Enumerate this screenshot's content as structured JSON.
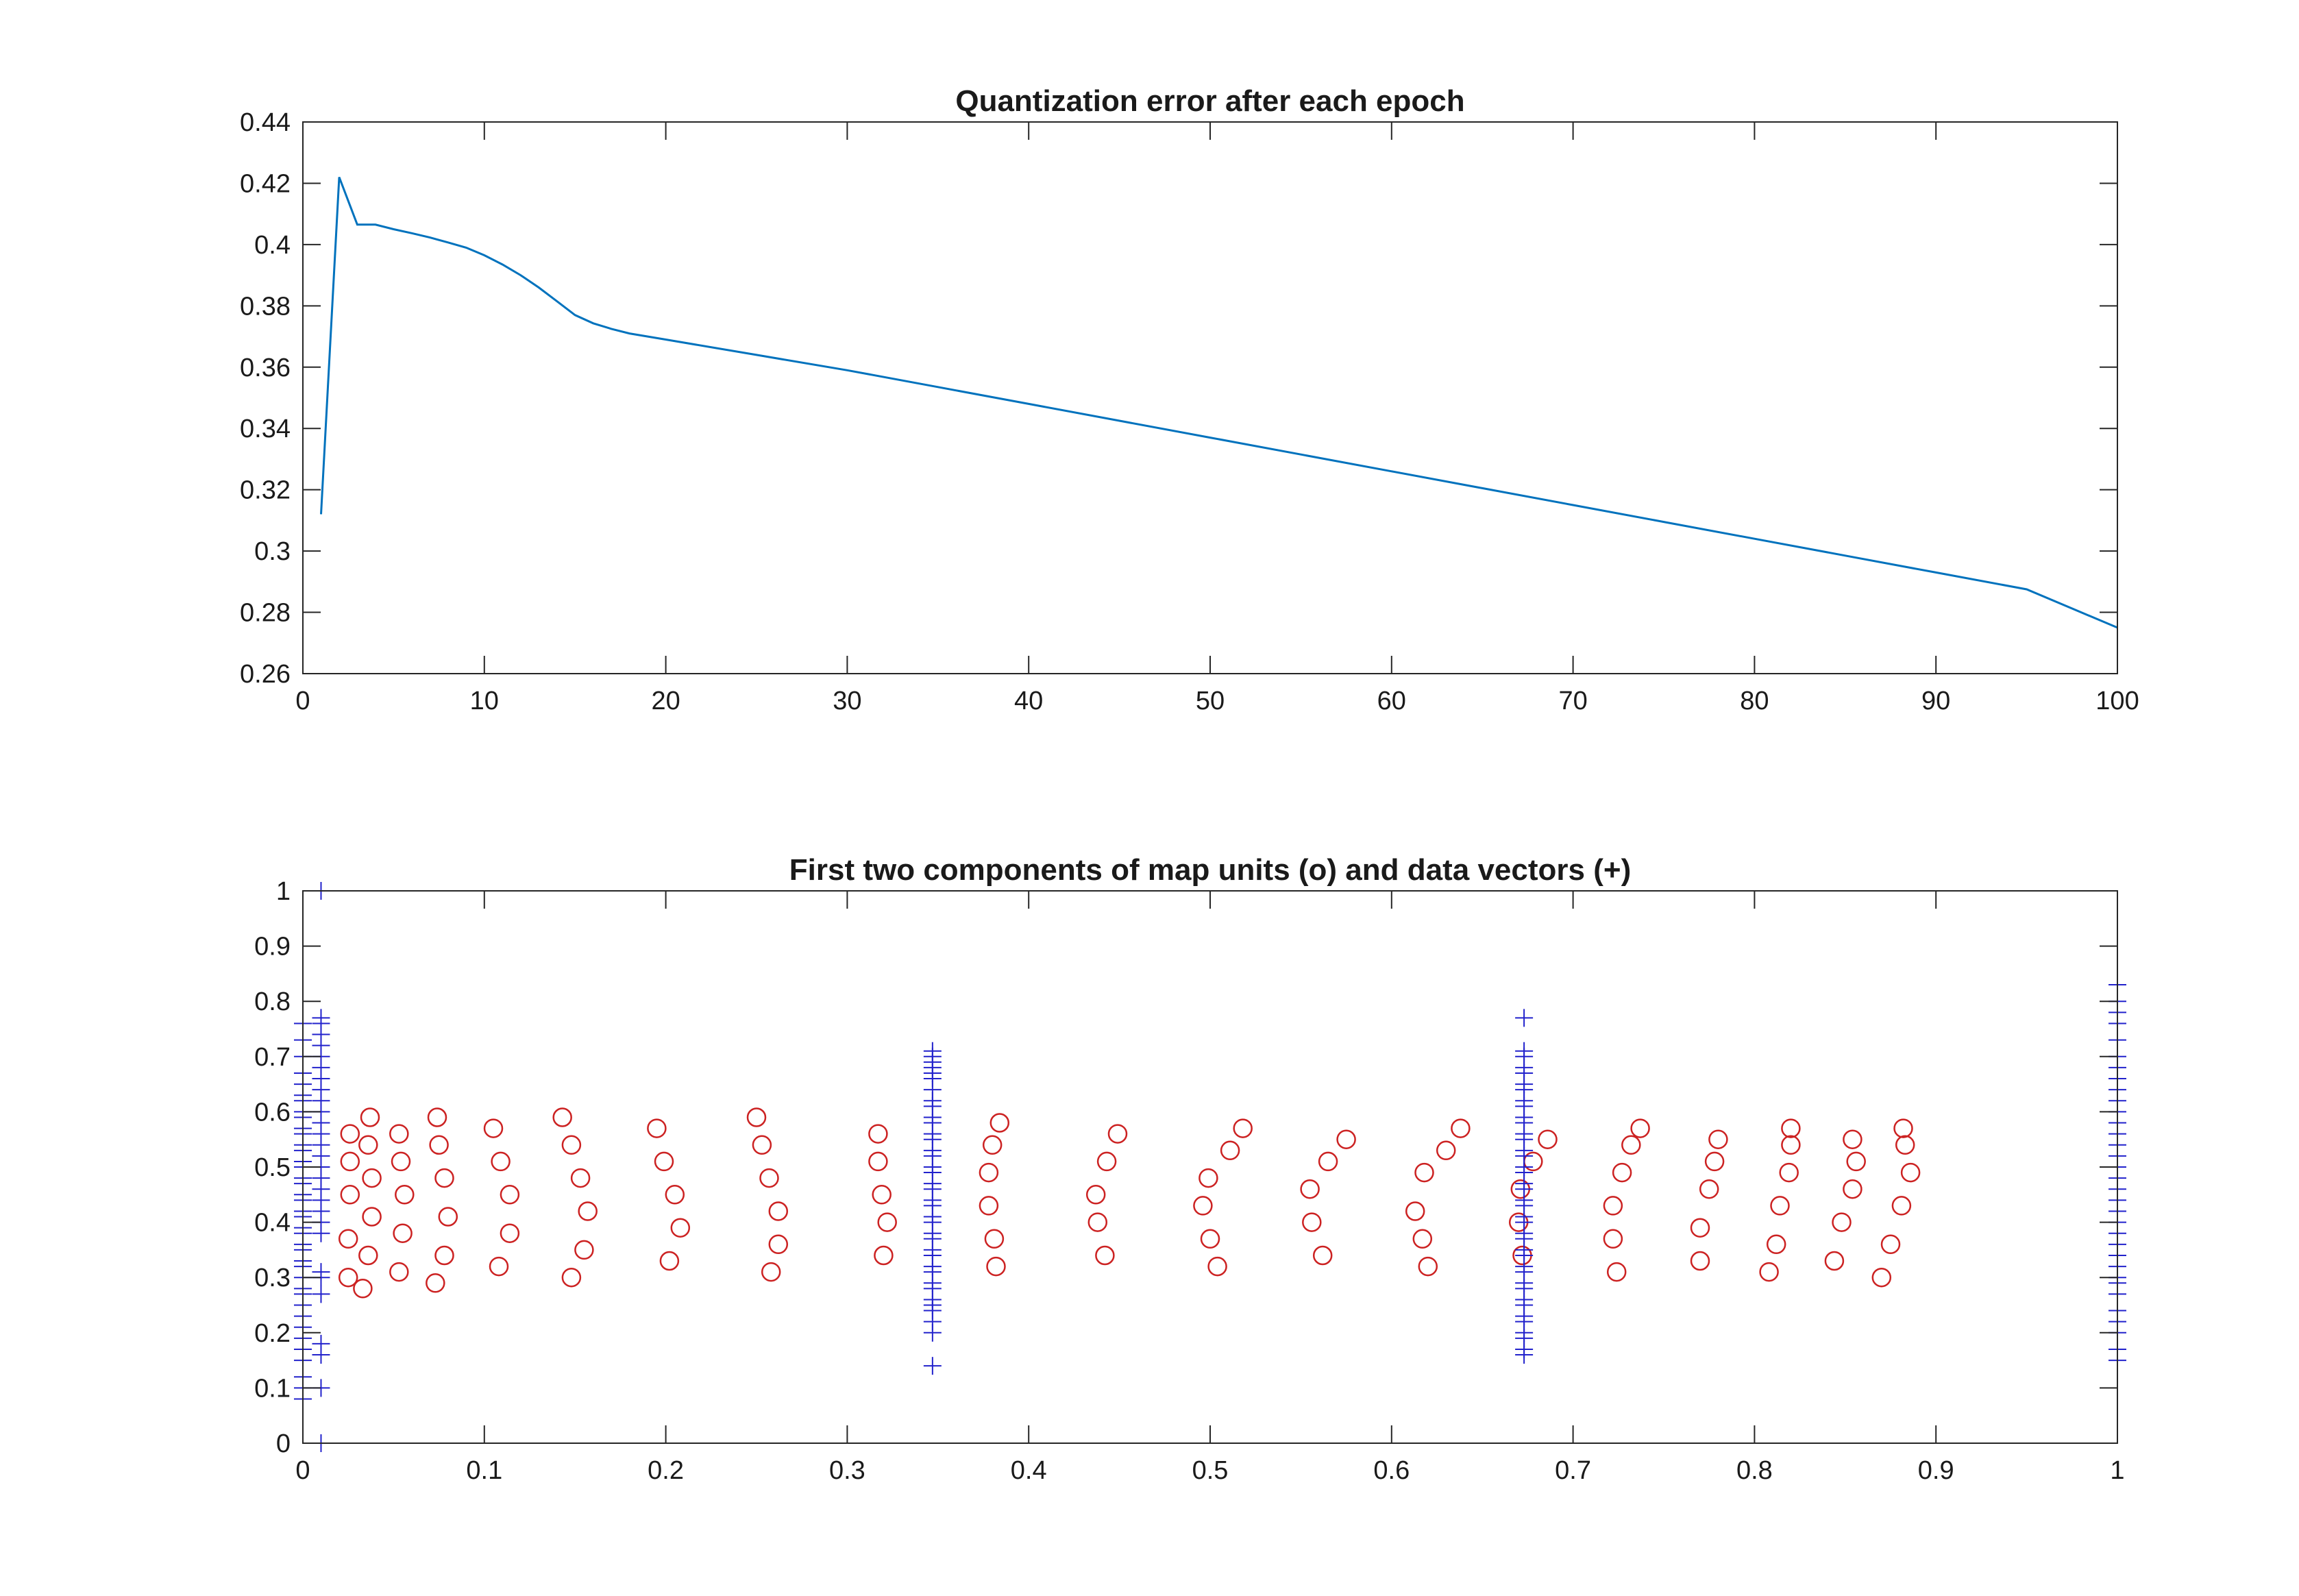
{
  "chart_data": [
    {
      "type": "line",
      "title": "Quantization error after each epoch",
      "xlabel": "",
      "ylabel": "",
      "xlim": [
        0,
        100
      ],
      "ylim": [
        0.26,
        0.44
      ],
      "xticks": [
        0,
        10,
        20,
        30,
        40,
        50,
        60,
        70,
        80,
        90,
        100
      ],
      "xtick_labels": [
        "0",
        "10",
        "20",
        "30",
        "40",
        "50",
        "60",
        "70",
        "80",
        "90",
        "100"
      ],
      "yticks": [
        0.26,
        0.28,
        0.3,
        0.32,
        0.34,
        0.36,
        0.38,
        0.4,
        0.42,
        0.44
      ],
      "ytick_labels": [
        "0.26",
        "0.28",
        "0.3",
        "0.32",
        "0.34",
        "0.36",
        "0.38",
        "0.4",
        "0.42",
        "0.44"
      ],
      "grid": false,
      "line_color": "#0072BD",
      "series": [
        {
          "x": [
            1,
            2,
            3,
            4,
            5,
            6,
            7,
            8,
            9,
            10,
            11,
            12,
            13,
            14,
            15,
            16,
            17,
            18,
            20,
            25,
            30,
            35,
            40,
            45,
            50,
            55,
            60,
            65,
            70,
            75,
            80,
            85,
            90,
            95,
            100
          ],
          "y": [
            0.312,
            0.422,
            0.4065,
            0.4065,
            0.405,
            0.4037,
            0.4023,
            0.4007,
            0.399,
            0.3965,
            0.3935,
            0.39,
            0.386,
            0.3815,
            0.377,
            0.3743,
            0.3725,
            0.371,
            0.369,
            0.364,
            0.359,
            0.3535,
            0.348,
            0.3425,
            0.337,
            0.3315,
            0.326,
            0.3205,
            0.315,
            0.3095,
            0.304,
            0.2985,
            0.293,
            0.2875,
            0.275
          ]
        }
      ]
    },
    {
      "type": "scatter",
      "title": "First two components of map units (o) and data vectors (+)",
      "xlabel": "",
      "ylabel": "",
      "xlim": [
        0,
        1
      ],
      "ylim": [
        0,
        1
      ],
      "xticks": [
        0,
        0.1,
        0.2,
        0.3,
        0.4,
        0.5,
        0.6,
        0.7,
        0.8,
        0.9,
        1
      ],
      "xtick_labels": [
        "0",
        "0.1",
        "0.2",
        "0.3",
        "0.4",
        "0.5",
        "0.6",
        "0.7",
        "0.8",
        "0.9",
        "1"
      ],
      "yticks": [
        0,
        0.1,
        0.2,
        0.3,
        0.4,
        0.5,
        0.6,
        0.7,
        0.8,
        0.9,
        1
      ],
      "ytick_labels": [
        "0",
        "0.1",
        "0.2",
        "0.3",
        "0.4",
        "0.5",
        "0.6",
        "0.7",
        "0.8",
        "0.9",
        "1"
      ],
      "grid": false,
      "series": [
        {
          "marker": "o",
          "color": "#CC2222",
          "points": [
            [
              0.025,
              0.3
            ],
            [
              0.033,
              0.28
            ],
            [
              0.053,
              0.31
            ],
            [
              0.073,
              0.29
            ],
            [
              0.108,
              0.32
            ],
            [
              0.148,
              0.3
            ],
            [
              0.202,
              0.33
            ],
            [
              0.258,
              0.31
            ],
            [
              0.32,
              0.34
            ],
            [
              0.382,
              0.32
            ],
            [
              0.442,
              0.34
            ],
            [
              0.504,
              0.32
            ],
            [
              0.562,
              0.34
            ],
            [
              0.62,
              0.32
            ],
            [
              0.672,
              0.34
            ],
            [
              0.724,
              0.31
            ],
            [
              0.77,
              0.33
            ],
            [
              0.808,
              0.31
            ],
            [
              0.844,
              0.33
            ],
            [
              0.87,
              0.3
            ],
            [
              0.025,
              0.37
            ],
            [
              0.036,
              0.34
            ],
            [
              0.055,
              0.38
            ],
            [
              0.078,
              0.34
            ],
            [
              0.114,
              0.38
            ],
            [
              0.155,
              0.35
            ],
            [
              0.208,
              0.39
            ],
            [
              0.262,
              0.36
            ],
            [
              0.322,
              0.4
            ],
            [
              0.381,
              0.37
            ],
            [
              0.438,
              0.4
            ],
            [
              0.5,
              0.37
            ],
            [
              0.556,
              0.4
            ],
            [
              0.617,
              0.37
            ],
            [
              0.67,
              0.4
            ],
            [
              0.722,
              0.37
            ],
            [
              0.77,
              0.39
            ],
            [
              0.812,
              0.36
            ],
            [
              0.848,
              0.4
            ],
            [
              0.875,
              0.36
            ],
            [
              0.026,
              0.45
            ],
            [
              0.038,
              0.41
            ],
            [
              0.056,
              0.45
            ],
            [
              0.08,
              0.41
            ],
            [
              0.114,
              0.45
            ],
            [
              0.157,
              0.42
            ],
            [
              0.205,
              0.45
            ],
            [
              0.262,
              0.42
            ],
            [
              0.319,
              0.45
            ],
            [
              0.378,
              0.43
            ],
            [
              0.437,
              0.45
            ],
            [
              0.496,
              0.43
            ],
            [
              0.555,
              0.46
            ],
            [
              0.613,
              0.42
            ],
            [
              0.671,
              0.46
            ],
            [
              0.722,
              0.43
            ],
            [
              0.775,
              0.46
            ],
            [
              0.814,
              0.43
            ],
            [
              0.854,
              0.46
            ],
            [
              0.881,
              0.43
            ],
            [
              0.026,
              0.51
            ],
            [
              0.038,
              0.48
            ],
            [
              0.054,
              0.51
            ],
            [
              0.078,
              0.48
            ],
            [
              0.109,
              0.51
            ],
            [
              0.153,
              0.48
            ],
            [
              0.199,
              0.51
            ],
            [
              0.257,
              0.48
            ],
            [
              0.317,
              0.51
            ],
            [
              0.378,
              0.49
            ],
            [
              0.443,
              0.51
            ],
            [
              0.499,
              0.48
            ],
            [
              0.565,
              0.51
            ],
            [
              0.618,
              0.49
            ],
            [
              0.678,
              0.51
            ],
            [
              0.727,
              0.49
            ],
            [
              0.778,
              0.51
            ],
            [
              0.819,
              0.49
            ],
            [
              0.856,
              0.51
            ],
            [
              0.886,
              0.49
            ],
            [
              0.026,
              0.56
            ],
            [
              0.036,
              0.54
            ],
            [
              0.053,
              0.56
            ],
            [
              0.075,
              0.54
            ],
            [
              0.105,
              0.57
            ],
            [
              0.148,
              0.54
            ],
            [
              0.195,
              0.57
            ],
            [
              0.253,
              0.54
            ],
            [
              0.317,
              0.56
            ],
            [
              0.38,
              0.54
            ],
            [
              0.449,
              0.56
            ],
            [
              0.511,
              0.53
            ],
            [
              0.575,
              0.55
            ],
            [
              0.63,
              0.53
            ],
            [
              0.686,
              0.55
            ],
            [
              0.732,
              0.54
            ],
            [
              0.78,
              0.55
            ],
            [
              0.82,
              0.54
            ],
            [
              0.854,
              0.55
            ],
            [
              0.883,
              0.54
            ],
            [
              0.037,
              0.59
            ],
            [
              0.074,
              0.59
            ],
            [
              0.143,
              0.59
            ],
            [
              0.25,
              0.59
            ],
            [
              0.384,
              0.58
            ],
            [
              0.518,
              0.57
            ],
            [
              0.638,
              0.57
            ],
            [
              0.737,
              0.57
            ],
            [
              0.82,
              0.57
            ],
            [
              0.882,
              0.57
            ]
          ]
        },
        {
          "marker": "+",
          "color": "#2222CC",
          "columns": [
            {
              "x": 0.0,
              "ys": [
                0.08,
                0.1,
                0.12,
                0.15,
                0.17,
                0.19,
                0.21,
                0.23,
                0.25,
                0.27,
                0.28,
                0.3,
                0.32,
                0.33,
                0.35,
                0.36,
                0.38,
                0.39,
                0.41,
                0.42,
                0.44,
                0.45,
                0.47,
                0.48,
                0.5,
                0.51,
                0.53,
                0.54,
                0.56,
                0.57,
                0.59,
                0.6,
                0.62,
                0.63,
                0.65,
                0.67,
                0.7,
                0.73,
                0.76
              ]
            },
            {
              "x": 0.01,
              "ys": [
                0.0,
                0.1,
                0.16,
                0.18,
                0.27,
                0.3,
                0.31,
                0.38,
                0.4,
                0.42,
                0.44,
                0.46,
                0.48,
                0.5,
                0.52,
                0.54,
                0.56,
                0.58,
                0.6,
                0.62,
                0.64,
                0.66,
                0.68,
                0.7,
                0.72,
                0.74,
                0.76,
                0.77,
                1.0
              ]
            },
            {
              "x": 0.347,
              "ys": [
                0.14,
                0.2,
                0.22,
                0.24,
                0.25,
                0.26,
                0.28,
                0.29,
                0.31,
                0.32,
                0.34,
                0.35,
                0.37,
                0.38,
                0.4,
                0.41,
                0.43,
                0.44,
                0.46,
                0.47,
                0.49,
                0.5,
                0.52,
                0.53,
                0.55,
                0.56,
                0.58,
                0.59,
                0.61,
                0.62,
                0.64,
                0.66,
                0.67,
                0.68,
                0.69,
                0.7,
                0.71
              ]
            },
            {
              "x": 0.673,
              "ys": [
                0.16,
                0.17,
                0.19,
                0.2,
                0.22,
                0.23,
                0.25,
                0.26,
                0.28,
                0.29,
                0.31,
                0.32,
                0.34,
                0.35,
                0.37,
                0.38,
                0.4,
                0.41,
                0.43,
                0.44,
                0.46,
                0.47,
                0.49,
                0.5,
                0.52,
                0.53,
                0.55,
                0.56,
                0.58,
                0.59,
                0.61,
                0.62,
                0.64,
                0.65,
                0.67,
                0.68,
                0.7,
                0.71,
                0.77
              ]
            },
            {
              "x": 1.0,
              "ys": [
                0.15,
                0.17,
                0.2,
                0.22,
                0.24,
                0.27,
                0.29,
                0.3,
                0.32,
                0.34,
                0.36,
                0.38,
                0.4,
                0.42,
                0.44,
                0.46,
                0.48,
                0.5,
                0.52,
                0.54,
                0.56,
                0.58,
                0.6,
                0.62,
                0.64,
                0.66,
                0.68,
                0.7,
                0.73,
                0.76,
                0.78,
                0.8,
                0.83
              ]
            }
          ]
        }
      ]
    }
  ]
}
